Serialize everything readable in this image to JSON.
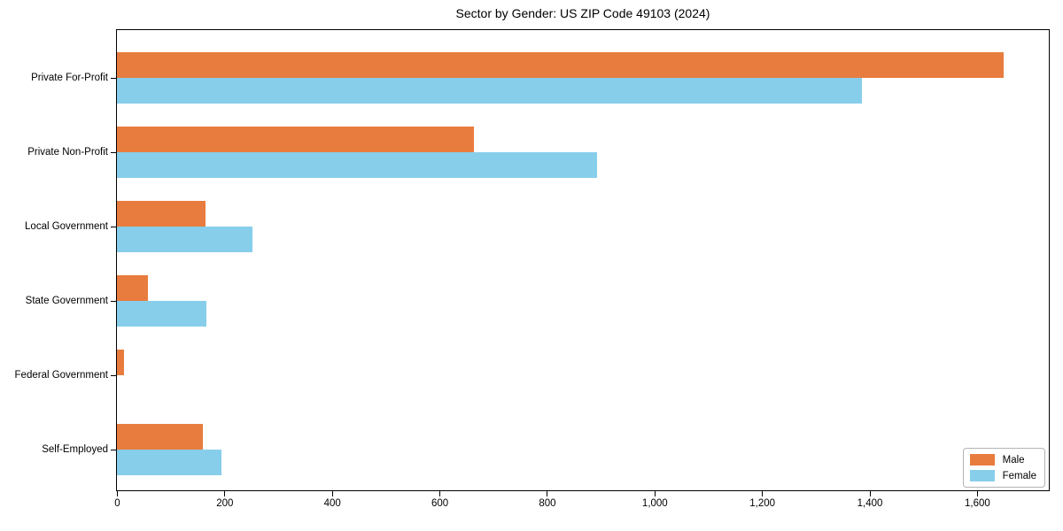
{
  "chart_data": {
    "type": "bar",
    "orientation": "horizontal",
    "title": "Sector by Gender: US ZIP Code 49103 (2024)",
    "categories": [
      "Private For-Profit",
      "Private Non-Profit",
      "Local Government",
      "State Government",
      "Federal Government",
      "Self-Employed"
    ],
    "series": [
      {
        "name": "Male",
        "color": "#e87c3e",
        "values": [
          1650,
          664,
          164,
          57,
          13,
          160
        ]
      },
      {
        "name": "Female",
        "color": "#87ceeb",
        "values": [
          1386,
          893,
          252,
          166,
          0,
          195
        ]
      }
    ],
    "xlabel": "",
    "ylabel": "",
    "xlim": [
      0,
      1732
    ],
    "x_ticks": [
      0,
      200,
      400,
      600,
      800,
      1000,
      1200,
      1400,
      1600
    ],
    "x_tick_labels": [
      "0",
      "200",
      "400",
      "600",
      "800",
      "1,000",
      "1,200",
      "1,400",
      "1,600"
    ],
    "grid": false,
    "legend": {
      "position": "lower right",
      "entries": [
        "Male",
        "Female"
      ]
    }
  },
  "colors": {
    "background": "#ffffff",
    "axis": "#000000",
    "legend_border": "#b3b3b3",
    "male": "#e87c3e",
    "female": "#87ceeb"
  }
}
